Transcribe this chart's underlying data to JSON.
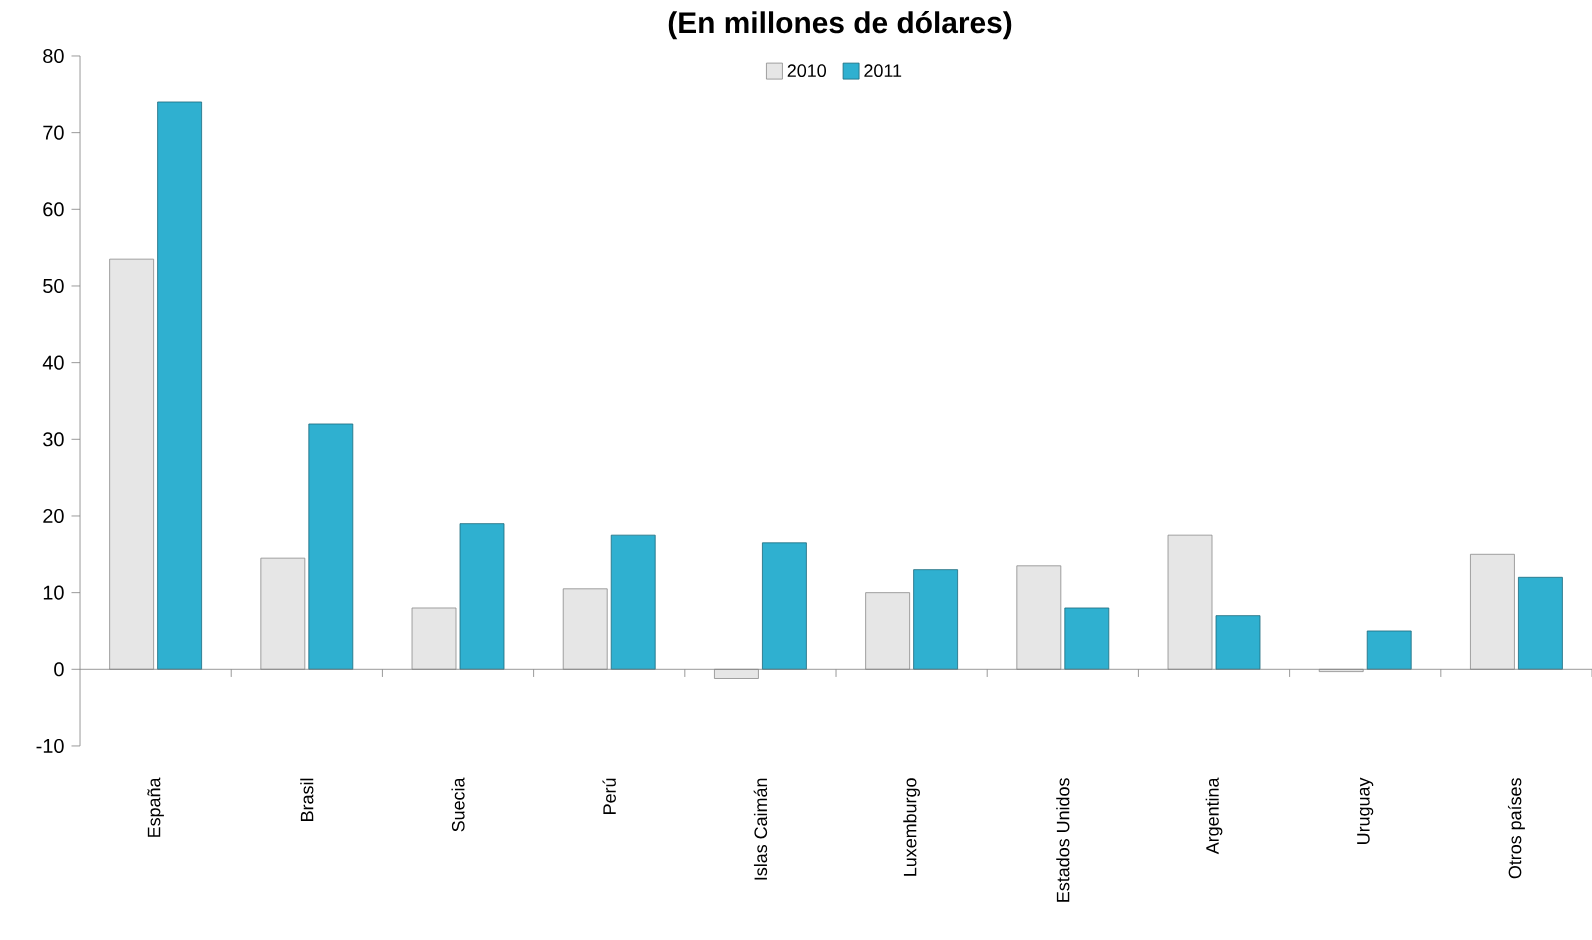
{
  "chart_data": {
    "type": "bar",
    "title": "(En millones de dólares)",
    "categories": [
      "España",
      "Brasil",
      "Suecia",
      "Perú",
      "Islas Caimán",
      "Luxemburgo",
      "Estados Unidos",
      "Argentina",
      "Uruguay",
      "Otros países"
    ],
    "series": [
      {
        "name": "2010",
        "color": "#e6e6e6",
        "values": [
          53.5,
          14.5,
          8,
          10.5,
          -1.2,
          10,
          13.5,
          17.5,
          -0.3,
          15
        ]
      },
      {
        "name": "2011",
        "color": "#2fb0d0",
        "values": [
          74,
          32,
          19,
          17.5,
          16.5,
          13,
          8,
          7,
          5,
          12
        ]
      }
    ],
    "ylim": [
      -10,
      80
    ],
    "yticks": [
      -10,
      0,
      10,
      20,
      30,
      40,
      50,
      60,
      70,
      80
    ],
    "legend": "top"
  }
}
